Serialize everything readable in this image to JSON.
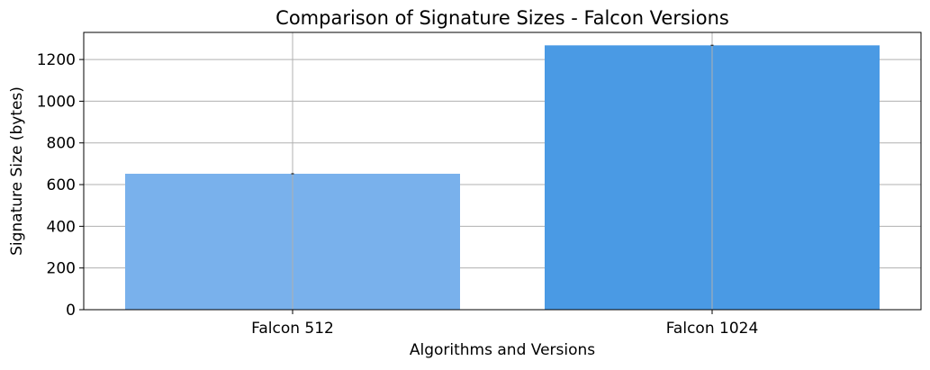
{
  "chart_data": {
    "type": "bar",
    "title": "Comparison of Signature Sizes - Falcon Versions",
    "xlabel": "Algorithms and Versions",
    "ylabel": "Signature Size (bytes)",
    "categories": [
      "Falcon 512",
      "Falcon 1024"
    ],
    "values": [
      652,
      1268
    ],
    "error": [
      3,
      3
    ],
    "ylim": [
      0,
      1330
    ],
    "yticks": [
      0,
      200,
      400,
      600,
      800,
      1000,
      1200
    ],
    "grid": true,
    "colors": [
      "#79b1ec",
      "#4a9ae4"
    ],
    "errorbar_color": "#333333",
    "grid_color": "#b0b0b0"
  }
}
